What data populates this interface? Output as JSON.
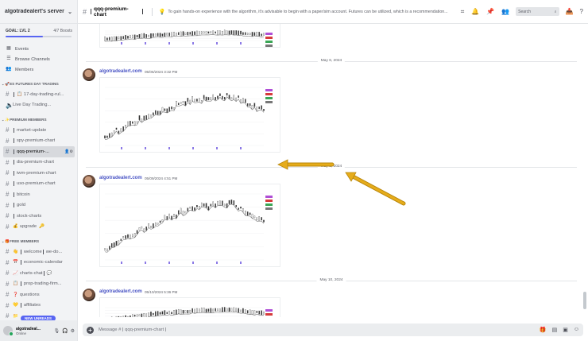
{
  "sidebar": {
    "server_name": "algotradealert's server",
    "goal_label": "GOAL: LVL 2",
    "goal_boosts": "4/7 Boosts",
    "goal_progress": 0.57,
    "nav": [
      {
        "label": "Events",
        "icon": "calendar-icon"
      },
      {
        "label": "Browse Channels",
        "icon": "browse-icon"
      },
      {
        "label": "Members",
        "icon": "members-icon"
      }
    ],
    "categories": [
      {
        "label": "ES FUTURES DAY TRADING",
        "channels": [
          {
            "label": "17-day-trading-rul...",
            "emoji": "📋"
          },
          {
            "label": "Live Day Trading...",
            "emoji": "🔊",
            "voice": true
          }
        ]
      },
      {
        "label": "PREMIUM MEMBERS",
        "channels": [
          {
            "label": "market-update"
          },
          {
            "label": "spy-premium-chart"
          },
          {
            "label": "qqq-premium-...",
            "active": true
          },
          {
            "label": "dia-premium-chart"
          },
          {
            "label": "iwm-premium-chart"
          },
          {
            "label": "uso-premium-chart"
          },
          {
            "label": "bitcoin"
          },
          {
            "label": "gold"
          },
          {
            "label": "stock-charts"
          },
          {
            "label": "upgrade",
            "emoji": "💰",
            "suffix": "🔑"
          }
        ]
      },
      {
        "label": "FREE MEMBERS",
        "channels": [
          {
            "label": "welcome",
            "emoji": "👋",
            "suffix": "we-do..."
          },
          {
            "label": "economic-calendar",
            "emoji": "📅"
          },
          {
            "label": "charts-chat",
            "emoji": "📈",
            "suffix": "💬"
          },
          {
            "label": "prop-trading-firm...",
            "emoji": "📋"
          },
          {
            "label": "questions",
            "emoji": "❓"
          },
          {
            "label": "affiliates",
            "emoji": "💛"
          },
          {
            "label": "...",
            "emoji": "📁"
          }
        ]
      }
    ],
    "new_unreads": "NEW UNREADS",
    "user": {
      "name": "algotradeal...",
      "status": "Online"
    }
  },
  "topbar": {
    "channel": "qqq-premium-chart",
    "topic_emoji": "💡",
    "topic": "To gain hands-on experience with the algorithm, it's advisable to begin with a paper/sim account. Futures can be utilized, which is a recommendation...",
    "search_placeholder": "Search"
  },
  "messages": {
    "dividers": [
      "May 6, 2024",
      "May 9, 2024",
      "May 10, 2024"
    ],
    "posts": [
      {
        "author": "algotradealert.com",
        "time": "05/06/2024 3:32 PM"
      },
      {
        "author": "algotradealert.com",
        "time": "05/09/2024 4:51 PM"
      },
      {
        "author": "algotradealert.com",
        "time": "05/10/2024 5:36 PM"
      }
    ]
  },
  "composer": {
    "placeholder": "Message #",
    "channel": "qqq-premium-chart"
  },
  "colors": {
    "accent": "#5865f2",
    "link": "#4752c4",
    "annotation_arrow": "#e6ac1a"
  }
}
